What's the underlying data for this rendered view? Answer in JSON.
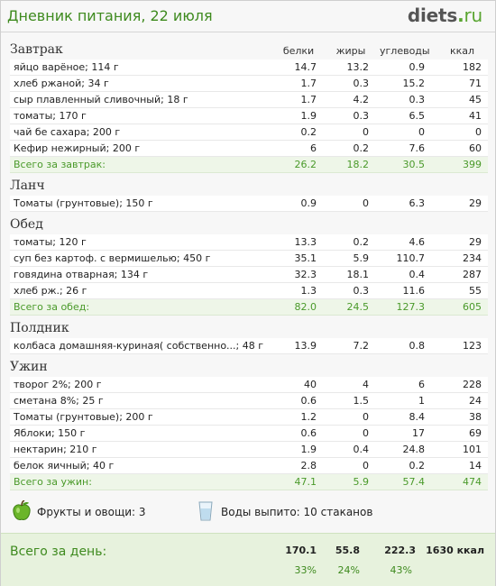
{
  "header": {
    "title": "Дневник питания, 22 июля",
    "logo_main": "diets",
    "logo_dot": ".",
    "logo_ru": "ru"
  },
  "columns": {
    "protein": "белки",
    "fat": "жиры",
    "carbs": "углеводы",
    "kcal": "ккал"
  },
  "meals": [
    {
      "title": "Завтрак",
      "items": [
        {
          "name": "яйцо варёное; 114 г",
          "protein": "14.7",
          "fat": "13.2",
          "carbs": "0.9",
          "kcal": "182"
        },
        {
          "name": "хлеб ржаной; 34 г",
          "protein": "1.7",
          "fat": "0.3",
          "carbs": "15.2",
          "kcal": "71"
        },
        {
          "name": "сыр плавленный сливочный; 18 г",
          "protein": "1.7",
          "fat": "4.2",
          "carbs": "0.3",
          "kcal": "45"
        },
        {
          "name": "томаты; 170 г",
          "protein": "1.9",
          "fat": "0.3",
          "carbs": "6.5",
          "kcal": "41"
        },
        {
          "name": "чай бе сахара; 200 г",
          "protein": "0.2",
          "fat": "0",
          "carbs": "0",
          "kcal": "0"
        },
        {
          "name": "Кефир нежирный; 200 г",
          "protein": "6",
          "fat": "0.2",
          "carbs": "7.6",
          "kcal": "60"
        }
      ],
      "total": {
        "name": "Всего за завтрак:",
        "protein": "26.2",
        "fat": "18.2",
        "carbs": "30.5",
        "kcal": "399"
      }
    },
    {
      "title": "Ланч",
      "items": [
        {
          "name": "Томаты (грунтовые); 150 г",
          "protein": "0.9",
          "fat": "0",
          "carbs": "6.3",
          "kcal": "29"
        }
      ]
    },
    {
      "title": "Обед",
      "items": [
        {
          "name": "томаты; 120 г",
          "protein": "13.3",
          "fat": "0.2",
          "carbs": "4.6",
          "kcal": "29"
        },
        {
          "name": "суп без картоф. с вермишелью; 450 г",
          "protein": "35.1",
          "fat": "5.9",
          "carbs": "110.7",
          "kcal": "234"
        },
        {
          "name": "говядина отварная; 134 г",
          "protein": "32.3",
          "fat": "18.1",
          "carbs": "0.4",
          "kcal": "287"
        },
        {
          "name": "хлеб рж.; 26 г",
          "protein": "1.3",
          "fat": "0.3",
          "carbs": "11.6",
          "kcal": "55"
        }
      ],
      "total": {
        "name": "Всего за обед:",
        "protein": "82.0",
        "fat": "24.5",
        "carbs": "127.3",
        "kcal": "605"
      }
    },
    {
      "title": "Полдник",
      "items": [
        {
          "name": "колбаса домашняя-куриная( собственно...; 48 г",
          "protein": "13.9",
          "fat": "7.2",
          "carbs": "0.8",
          "kcal": "123"
        }
      ]
    },
    {
      "title": "Ужин",
      "items": [
        {
          "name": "творог 2%; 200 г",
          "protein": "40",
          "fat": "4",
          "carbs": "6",
          "kcal": "228"
        },
        {
          "name": "сметана 8%; 25 г",
          "protein": "0.6",
          "fat": "1.5",
          "carbs": "1",
          "kcal": "24"
        },
        {
          "name": "Томаты (грунтовые); 200 г",
          "protein": "1.2",
          "fat": "0",
          "carbs": "8.4",
          "kcal": "38"
        },
        {
          "name": "Яблоки; 150 г",
          "protein": "0.6",
          "fat": "0",
          "carbs": "17",
          "kcal": "69"
        },
        {
          "name": "нектарин; 210 г",
          "protein": "1.9",
          "fat": "0.4",
          "carbs": "24.8",
          "kcal": "101"
        },
        {
          "name": "белок яичный; 40 г",
          "protein": "2.8",
          "fat": "0",
          "carbs": "0.2",
          "kcal": "14"
        }
      ],
      "total": {
        "name": "Всего за ужин:",
        "protein": "47.1",
        "fat": "5.9",
        "carbs": "57.4",
        "kcal": "474"
      }
    }
  ],
  "summary": {
    "fruits": "Фрукты и овощи: 3",
    "water": "Воды выпито: 10 стаканов",
    "fruit_icon": "apple-icon",
    "water_icon": "glass-icon"
  },
  "day_total": {
    "label": "Всего за день:",
    "protein": "170.1",
    "fat": "55.8",
    "carbs": "222.3",
    "kcal": "1630 ккал",
    "protein_pct": "33%",
    "fat_pct": "24%",
    "carbs_pct": "43%"
  },
  "colors": {
    "green": "#3e8a1e",
    "total_bg": "#eef6e8",
    "day_bg": "#e7f2dd"
  }
}
